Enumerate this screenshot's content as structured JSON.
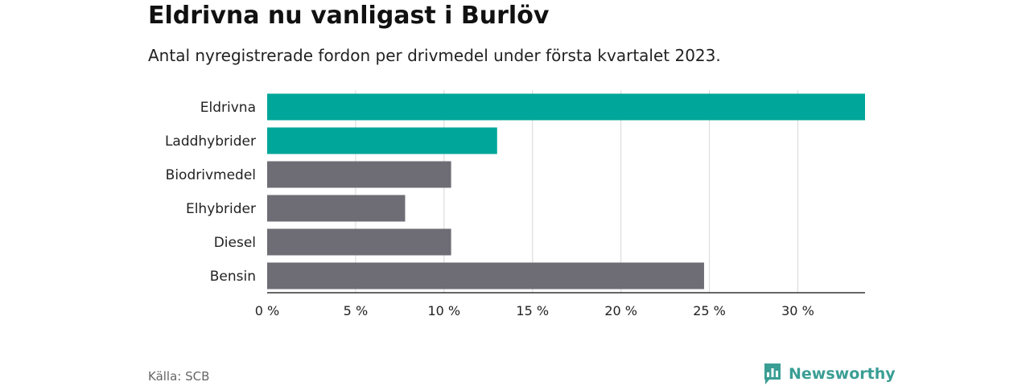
{
  "header": {
    "title": "Eldrivna nu vanligast i Burlöv",
    "subtitle": "Antal nyregistrerade fordon per drivmedel under första kvartalet 2023."
  },
  "footer": {
    "source": "Källa: SCB",
    "brand": "Newsworthy",
    "brand_icon": "bar-chart-speech-bubble-icon"
  },
  "colors": {
    "highlight": "#00a699",
    "default": "#6e6d75",
    "grid": "#dddddd",
    "axis": "#333333",
    "brand": "#3a9e94"
  },
  "chart_data": {
    "type": "bar",
    "orientation": "horizontal",
    "categories": [
      "Eldrivna",
      "Laddhybrider",
      "Biodrivmedel",
      "Elhybrider",
      "Diesel",
      "Bensin"
    ],
    "values": [
      33.8,
      13.0,
      10.4,
      7.8,
      10.4,
      24.7
    ],
    "highlighted": [
      true,
      true,
      false,
      false,
      false,
      false
    ],
    "xlim": [
      0,
      33.8
    ],
    "xticks": [
      0,
      5,
      10,
      15,
      20,
      25,
      30
    ],
    "xtick_labels": [
      "0 %",
      "5 %",
      "10 %",
      "15 %",
      "20 %",
      "25 %",
      "30 %"
    ],
    "grid": true,
    "xlabel": "",
    "ylabel": ""
  }
}
